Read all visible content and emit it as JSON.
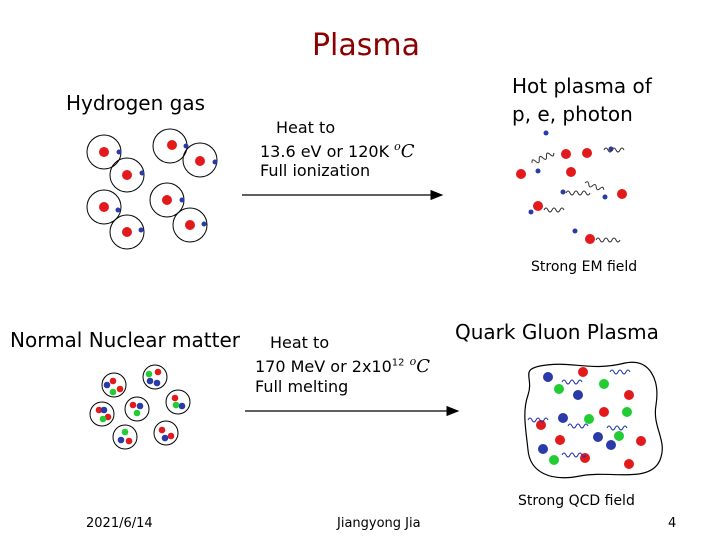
{
  "title": "Plasma",
  "hydrogen": {
    "label": "Hydrogen gas"
  },
  "hot_plasma": {
    "line1": "Hot plasma of",
    "line2": "p, e, photon",
    "caption": "Strong EM field"
  },
  "heat1": {
    "line1": "Heat to",
    "line2": "13.6 eV or 120K",
    "line3": "Full ionization",
    "unit": "o",
    "unit_c": "C"
  },
  "nuclear": {
    "label": "Normal Nuclear matter"
  },
  "heat2": {
    "line1": "Heat to",
    "line2_pre": "170 MeV or 2x10",
    "line2_exp": "12",
    "line3": "Full melting",
    "unit": "o",
    "unit_c": "C"
  },
  "qgp": {
    "label": "Quark Gluon Plasma",
    "caption": "Strong QCD field"
  },
  "footer": {
    "date": "2021/6/14",
    "author": "Jiangyong Jia",
    "page": "4"
  },
  "colors": {
    "title": "#8b0000",
    "proton": "#e31a1c",
    "electron": "#2a3aa8",
    "quark_green": "#22cc33",
    "gluon": "#2233aa"
  }
}
